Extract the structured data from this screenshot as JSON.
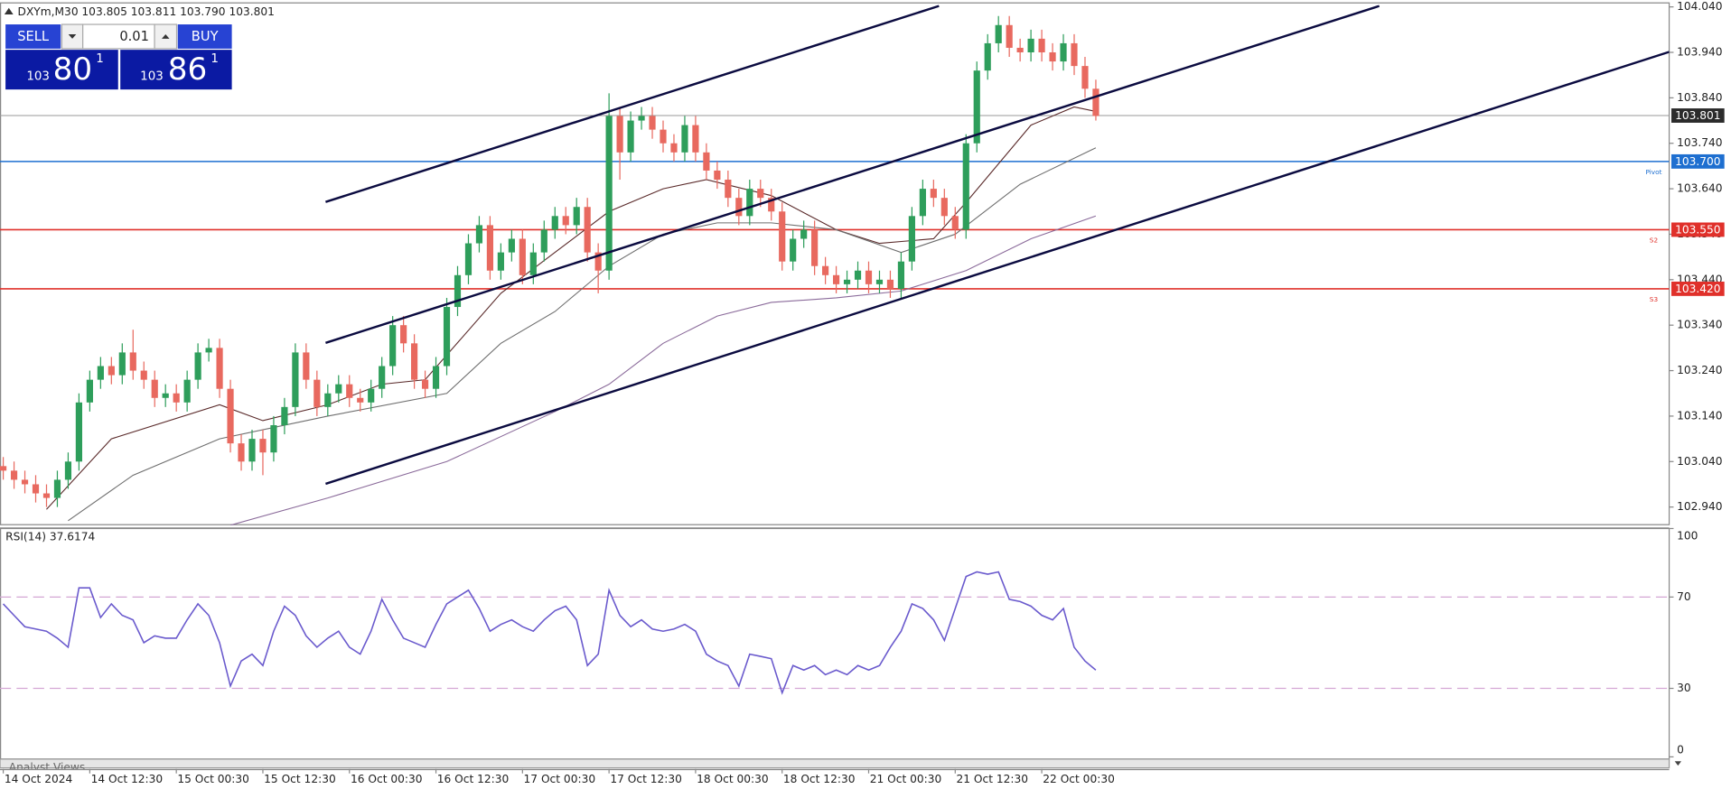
{
  "header": {
    "symbol": "DXYm,M30",
    "quote": "103.805 103.811 103.790 103.801"
  },
  "trade_panel": {
    "sell": "SELL",
    "buy": "BUY",
    "volume": "0.01",
    "bid": {
      "prefix": "103",
      "big": "80",
      "small": "1"
    },
    "ask": {
      "prefix": "103",
      "big": "86",
      "small": "1"
    }
  },
  "chart_data": [
    {
      "type": "candlestick",
      "xlim": [
        -0.3,
        154
      ],
      "ylim": [
        102.9,
        104.05
      ],
      "xticks": [
        {
          "value": 0,
          "label": "14 Oct 2024"
        },
        {
          "value": 8,
          "label": "14 Oct 12:30"
        },
        {
          "value": 16,
          "label": "15 Oct 00:30"
        },
        {
          "value": 24,
          "label": "15 Oct 12:30"
        },
        {
          "value": 32,
          "label": "16 Oct 00:30"
        },
        {
          "value": 40,
          "label": "16 Oct 12:30"
        },
        {
          "value": 48,
          "label": "17 Oct 00:30"
        },
        {
          "value": 56,
          "label": "17 Oct 12:30"
        },
        {
          "value": 64,
          "label": "18 Oct 00:30"
        },
        {
          "value": 72,
          "label": "18 Oct 12:30"
        },
        {
          "value": 80,
          "label": "21 Oct 00:30"
        },
        {
          "value": 88,
          "label": "21 Oct 12:30"
        },
        {
          "value": 96,
          "label": "22 Oct 00:30"
        }
      ],
      "yticks": [
        {
          "value": 102.94,
          "label": "102.940"
        },
        {
          "value": 103.04,
          "label": "103.040"
        },
        {
          "value": 103.14,
          "label": "103.140"
        },
        {
          "value": 103.24,
          "label": "103.240"
        },
        {
          "value": 103.34,
          "label": "103.340"
        },
        {
          "value": 103.44,
          "label": "103.440"
        },
        {
          "value": 103.54,
          "label": "103.540"
        },
        {
          "value": 103.64,
          "label": "103.640"
        },
        {
          "value": 103.74,
          "label": "103.740"
        },
        {
          "value": 103.84,
          "label": "103.840"
        },
        {
          "value": 103.94,
          "label": "103.940"
        },
        {
          "value": 104.04,
          "label": "104.040"
        }
      ],
      "up_color": "#2e9e5b",
      "down_color": "#e8695f",
      "open": [
        103.03,
        103.02,
        103.0,
        102.99,
        102.97,
        102.96,
        103.0,
        103.04,
        103.17,
        103.22,
        103.25,
        103.23,
        103.28,
        103.24,
        103.22,
        103.18,
        103.19,
        103.17,
        103.22,
        103.28,
        103.29,
        103.2,
        103.08,
        103.04,
        103.09,
        103.06,
        103.12,
        103.16,
        103.28,
        103.22,
        103.16,
        103.19,
        103.21,
        103.18,
        103.17,
        103.2,
        103.25,
        103.34,
        103.3,
        103.22,
        103.2,
        103.25,
        103.38,
        103.45,
        103.52,
        103.56,
        103.46,
        103.5,
        103.53,
        103.45,
        103.5,
        103.55,
        103.58,
        103.56,
        103.6,
        103.5,
        103.46,
        103.8,
        103.72,
        103.79,
        103.8,
        103.77,
        103.74,
        103.72,
        103.78,
        103.72,
        103.68,
        103.66,
        103.62,
        103.58,
        103.64,
        103.62,
        103.59,
        103.48,
        103.53,
        103.55,
        103.47,
        103.45,
        103.43,
        103.44,
        103.46,
        103.43,
        103.44,
        103.42,
        103.48,
        103.58,
        103.64,
        103.62,
        103.58,
        103.55,
        103.74,
        103.9,
        103.96,
        104.0,
        103.95,
        103.94,
        103.97,
        103.94,
        103.92,
        103.96,
        103.91,
        103.86
      ],
      "high": [
        103.05,
        103.04,
        103.02,
        103.01,
        102.99,
        103.02,
        103.06,
        103.19,
        103.24,
        103.27,
        103.27,
        103.3,
        103.33,
        103.26,
        103.24,
        103.21,
        103.21,
        103.24,
        103.3,
        103.31,
        103.31,
        103.22,
        103.1,
        103.11,
        103.11,
        103.14,
        103.18,
        103.3,
        103.3,
        103.24,
        103.21,
        103.23,
        103.23,
        103.2,
        103.22,
        103.27,
        103.36,
        103.36,
        103.32,
        103.24,
        103.27,
        103.4,
        103.47,
        103.54,
        103.58,
        103.58,
        103.52,
        103.55,
        103.55,
        103.52,
        103.57,
        103.6,
        103.6,
        103.62,
        103.62,
        103.52,
        103.85,
        103.82,
        103.81,
        103.82,
        103.82,
        103.79,
        103.76,
        103.8,
        103.8,
        103.74,
        103.7,
        103.68,
        103.64,
        103.66,
        103.66,
        103.64,
        103.61,
        103.55,
        103.57,
        103.57,
        103.49,
        103.47,
        103.46,
        103.48,
        103.48,
        103.46,
        103.46,
        103.5,
        103.6,
        103.66,
        103.66,
        103.64,
        103.6,
        103.76,
        103.92,
        103.98,
        104.02,
        104.02,
        103.97,
        103.99,
        103.99,
        103.96,
        103.98,
        103.98,
        103.93,
        103.88
      ],
      "low": [
        103.0,
        102.98,
        102.97,
        102.95,
        102.94,
        102.94,
        102.98,
        103.02,
        103.15,
        103.2,
        103.21,
        103.21,
        103.22,
        103.2,
        103.16,
        103.16,
        103.15,
        103.15,
        103.2,
        103.26,
        103.18,
        103.06,
        103.02,
        103.02,
        103.01,
        103.04,
        103.1,
        103.14,
        103.2,
        103.14,
        103.14,
        103.17,
        103.16,
        103.15,
        103.15,
        103.18,
        103.23,
        103.28,
        103.2,
        103.18,
        103.18,
        103.23,
        103.36,
        103.43,
        103.5,
        103.44,
        103.44,
        103.48,
        103.43,
        103.43,
        103.48,
        103.53,
        103.54,
        103.54,
        103.48,
        103.41,
        103.44,
        103.66,
        103.7,
        103.77,
        103.75,
        103.72,
        103.7,
        103.7,
        103.7,
        103.66,
        103.64,
        103.6,
        103.56,
        103.56,
        103.6,
        103.57,
        103.46,
        103.46,
        103.51,
        103.45,
        103.43,
        103.41,
        103.41,
        103.42,
        103.41,
        103.41,
        103.4,
        103.4,
        103.46,
        103.56,
        103.6,
        103.56,
        103.53,
        103.53,
        103.72,
        103.88,
        103.94,
        103.93,
        103.92,
        103.92,
        103.92,
        103.9,
        103.9,
        103.89,
        103.84,
        103.79
      ],
      "close": [
        103.02,
        103.0,
        102.99,
        102.97,
        102.96,
        103.0,
        103.04,
        103.17,
        103.22,
        103.25,
        103.23,
        103.28,
        103.24,
        103.22,
        103.18,
        103.19,
        103.17,
        103.22,
        103.28,
        103.29,
        103.2,
        103.08,
        103.04,
        103.09,
        103.06,
        103.12,
        103.16,
        103.28,
        103.22,
        103.16,
        103.19,
        103.21,
        103.18,
        103.17,
        103.2,
        103.25,
        103.34,
        103.3,
        103.22,
        103.2,
        103.25,
        103.38,
        103.45,
        103.52,
        103.56,
        103.46,
        103.5,
        103.53,
        103.45,
        103.5,
        103.55,
        103.58,
        103.56,
        103.6,
        103.5,
        103.46,
        103.8,
        103.72,
        103.79,
        103.8,
        103.77,
        103.74,
        103.72,
        103.78,
        103.72,
        103.68,
        103.66,
        103.62,
        103.58,
        103.64,
        103.62,
        103.59,
        103.48,
        103.53,
        103.55,
        103.47,
        103.45,
        103.43,
        103.44,
        103.46,
        103.43,
        103.44,
        103.42,
        103.48,
        103.58,
        103.64,
        103.62,
        103.58,
        103.55,
        103.74,
        103.9,
        103.96,
        104.0,
        103.95,
        103.94,
        103.97,
        103.94,
        103.92,
        103.96,
        103.91,
        103.86,
        103.8
      ],
      "moving_averages": [
        {
          "color": "#5a2a2a",
          "x": [
            4,
            10,
            20,
            24,
            30,
            35,
            39,
            46,
            51,
            56,
            61,
            65,
            71,
            77,
            81,
            86,
            89,
            95,
            99,
            101
          ],
          "values": [
            102.935,
            103.09,
            103.165,
            103.13,
            103.165,
            103.21,
            103.22,
            103.41,
            103.5,
            103.59,
            103.64,
            103.66,
            103.625,
            103.55,
            103.52,
            103.53,
            103.61,
            103.78,
            103.82,
            103.81
          ]
        },
        {
          "color": "#6e6e6e",
          "x": [
            6,
            12,
            20,
            30,
            41,
            46,
            51,
            56,
            61,
            66,
            71,
            77,
            83,
            88,
            94,
            101
          ],
          "values": [
            102.91,
            103.01,
            103.09,
            103.14,
            103.19,
            103.3,
            103.37,
            103.47,
            103.54,
            103.565,
            103.565,
            103.55,
            103.5,
            103.54,
            103.65,
            103.73
          ]
        },
        {
          "color": "#8a6a9a",
          "x": [
            21,
            30,
            41,
            51,
            56,
            61,
            66,
            71,
            77,
            83,
            89,
            95,
            101
          ],
          "values": [
            102.9,
            102.96,
            103.04,
            103.15,
            103.21,
            103.3,
            103.36,
            103.39,
            103.4,
            103.415,
            103.46,
            103.53,
            103.58
          ]
        }
      ],
      "channel_color": "#0b0b40",
      "channels": [
        {
          "x": [
            29.8,
            86.5
          ],
          "values": [
            103.611,
            104.042
          ]
        },
        {
          "x": [
            29.8,
            127.2
          ],
          "values": [
            103.301,
            104.042
          ]
        },
        {
          "x": [
            29.8,
            154
          ],
          "values": [
            102.991,
            103.941
          ]
        }
      ],
      "levels": [
        {
          "value": 103.801,
          "label": "103.801",
          "color": "#9a9a9a",
          "box": "#2b2b2b"
        },
        {
          "value": 103.7,
          "label": "103.700",
          "tag": "Pivot",
          "color": "#1e6fd0",
          "box": "#1e6fd0"
        },
        {
          "value": 103.55,
          "label": "103.550",
          "tag": "S2",
          "color": "#e0302a",
          "box": "#e0302a"
        },
        {
          "value": 103.42,
          "label": "103.420",
          "tag": "S3",
          "color": "#e0302a",
          "box": "#e0302a"
        }
      ]
    },
    {
      "type": "line",
      "title": "RSI(14) 37.6174",
      "color": "#6a5acd",
      "ylim": [
        0,
        100
      ],
      "yticks": [
        0,
        30,
        70,
        100
      ],
      "levels": [
        30,
        70
      ],
      "level_color": "#d4a6d4",
      "values": [
        67,
        62,
        57,
        56,
        55,
        52,
        48,
        74,
        74,
        61,
        67,
        62,
        60,
        50,
        53,
        52,
        52,
        60,
        67,
        62,
        50,
        31,
        42,
        45,
        40,
        55,
        66,
        62,
        53,
        48,
        52,
        55,
        48,
        45,
        55,
        69,
        60,
        52,
        50,
        48,
        58,
        67,
        70,
        73,
        65,
        55,
        58,
        60,
        57,
        55,
        60,
        64,
        66,
        60,
        40,
        45,
        73,
        62,
        57,
        60,
        56,
        55,
        56,
        58,
        55,
        45,
        42,
        40,
        31,
        45,
        44,
        43,
        28,
        40,
        38,
        40,
        36,
        38,
        36,
        40,
        38,
        40,
        48,
        55,
        67,
        65,
        60,
        51,
        65,
        79,
        81,
        80,
        81,
        69,
        68,
        66,
        62,
        60,
        65,
        48,
        42,
        38
      ]
    }
  ],
  "footer": {
    "tab": "Analyst Views"
  }
}
